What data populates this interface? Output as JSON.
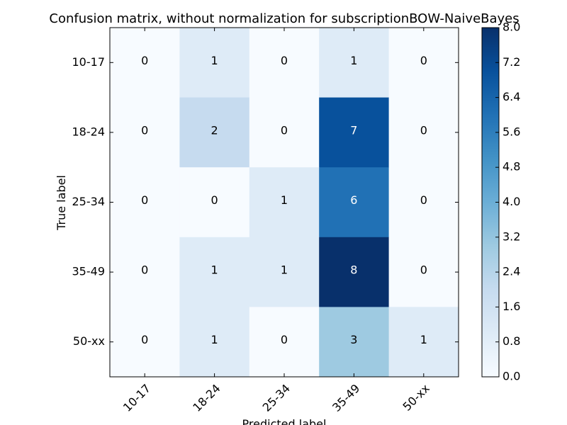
{
  "chart_data": {
    "type": "heatmap",
    "title": "Confusion matrix, without normalization for subscriptionBOW-NaiveBayes",
    "xlabel": "Predicted label",
    "ylabel": "True label",
    "x_categories": [
      "10-17",
      "18-24",
      "25-34",
      "35-49",
      "50-xx"
    ],
    "y_categories": [
      "10-17",
      "18-24",
      "25-34",
      "35-49",
      "50-xx"
    ],
    "values": [
      [
        0,
        1,
        0,
        1,
        0
      ],
      [
        0,
        2,
        0,
        7,
        0
      ],
      [
        0,
        0,
        1,
        6,
        0
      ],
      [
        0,
        1,
        1,
        8,
        0
      ],
      [
        0,
        1,
        0,
        3,
        1
      ]
    ],
    "colorbar": {
      "min": 0.0,
      "max": 8.0,
      "ticks": [
        "0.0",
        "0.8",
        "1.6",
        "2.4",
        "3.2",
        "4.0",
        "4.8",
        "5.6",
        "6.4",
        "7.2",
        "8.0"
      ]
    },
    "colormap": [
      "#f7fbff",
      "#deebf7",
      "#c6dbef",
      "#9ecae1",
      "#6baed6",
      "#4292c6",
      "#2171b5",
      "#08519c",
      "#08306b"
    ]
  }
}
